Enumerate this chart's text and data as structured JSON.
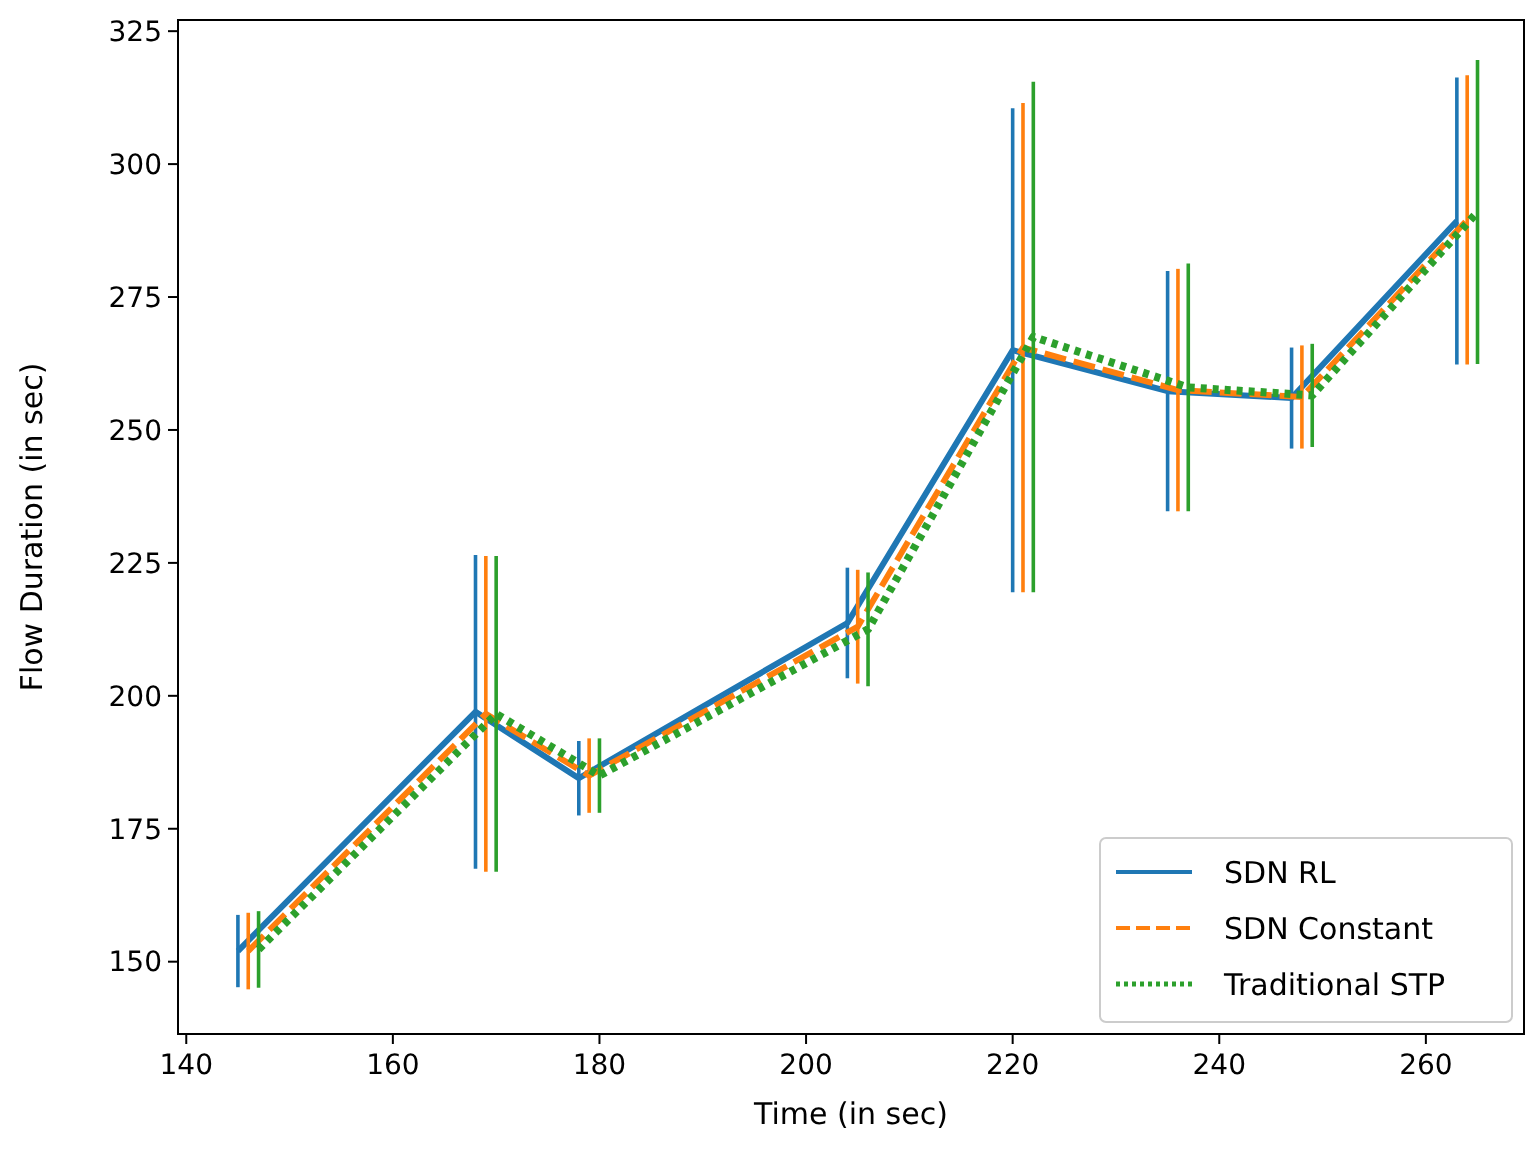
{
  "chart_data": {
    "type": "line",
    "xlabel": "Time (in sec)",
    "ylabel": "Flow Duration (in sec)",
    "xlim": [
      139.2,
      269.5
    ],
    "ylim": [
      136.4,
      327.1
    ],
    "xticks": [
      140,
      160,
      180,
      200,
      220,
      240,
      260
    ],
    "yticks": [
      150,
      175,
      200,
      225,
      250,
      275,
      300,
      325
    ],
    "legend": "bottom right",
    "grid": false,
    "marker": "none",
    "series": [
      {
        "name": "SDN RL",
        "color": "#1f77b4",
        "line_style": "solid",
        "x": [
          145,
          168,
          178,
          204,
          220,
          235,
          247,
          263
        ],
        "values": [
          152,
          197,
          184.5,
          213.7,
          265,
          257.3,
          256,
          289.3
        ],
        "errors": [
          6.8,
          29.5,
          7,
          10.4,
          45.5,
          22.6,
          9.5,
          27
        ]
      },
      {
        "name": "SDN Constant",
        "color": "#ff7f0e",
        "line_style": "dashed",
        "x": [
          146,
          169,
          179,
          205,
          221,
          236,
          248,
          264
        ],
        "values": [
          152,
          196.6,
          185,
          213,
          265.5,
          257.5,
          256.2,
          289.5
        ],
        "errors": [
          7.2,
          29.7,
          7,
          10.7,
          46,
          22.8,
          9.7,
          27.2
        ]
      },
      {
        "name": "Traditional STP",
        "color": "#2ca02c",
        "line_style": "dotted",
        "x": [
          147,
          170,
          180,
          206,
          222,
          237,
          249,
          265
        ],
        "values": [
          152.3,
          196.6,
          185,
          212.5,
          267.5,
          258,
          256.5,
          291
        ],
        "errors": [
          7.2,
          29.7,
          7,
          10.7,
          48,
          23.3,
          9.7,
          28.6
        ]
      }
    ]
  }
}
